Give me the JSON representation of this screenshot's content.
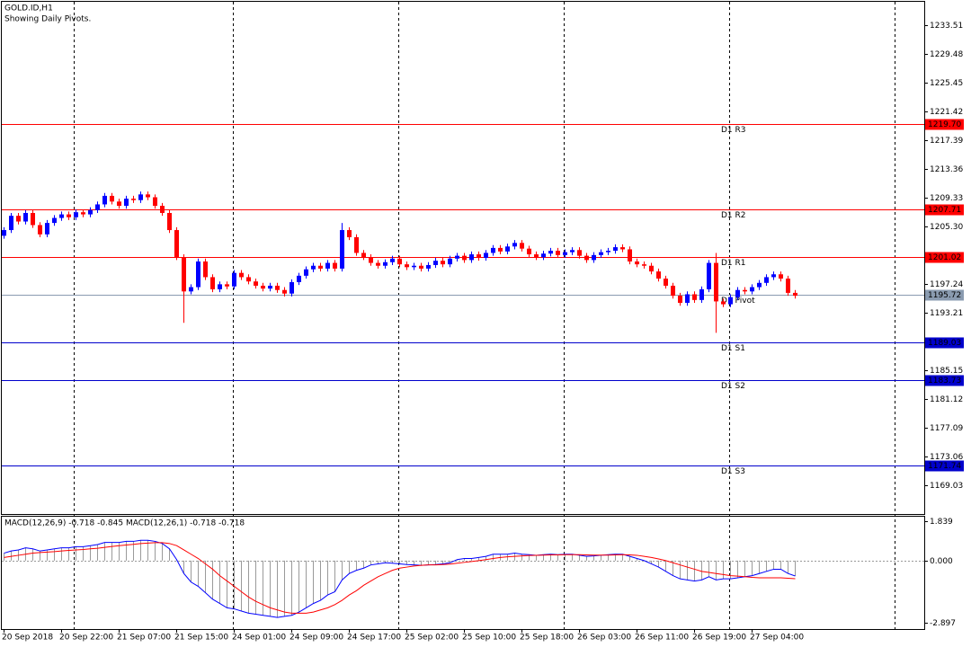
{
  "chart_data": [
    {
      "type": "candlestick",
      "title": "GOLD.ID,H1",
      "subtitle": "Showing Daily Pivots.",
      "categories": [
        "20 Sep 2018",
        null,
        null,
        null,
        null,
        null,
        null,
        null,
        "20 Sep 22:00",
        null,
        null,
        null,
        null,
        null,
        null,
        null,
        "21 Sep 07:00",
        null,
        null,
        null,
        null,
        null,
        null,
        null,
        "21 Sep 15:00",
        null,
        null,
        null,
        null,
        null,
        null,
        null,
        "24 Sep 01:00",
        null,
        null,
        null,
        null,
        null,
        null,
        null,
        "24 Sep 09:00",
        null,
        null,
        null,
        null,
        null,
        null,
        null,
        "24 Sep 17:00",
        null,
        null,
        null,
        null,
        null,
        null,
        null,
        "25 Sep 02:00",
        null,
        null,
        null,
        null,
        null,
        null,
        null,
        "25 Sep 10:00",
        null,
        null,
        null,
        null,
        null,
        null,
        null,
        "25 Sep 18:00",
        null,
        null,
        null,
        null,
        null,
        null,
        null,
        "26 Sep 03:00",
        null,
        null,
        null,
        null,
        null,
        null,
        null,
        "26 Sep 11:00",
        null,
        null,
        null,
        null,
        null,
        null,
        null,
        "26 Sep 19:00",
        null,
        null,
        null,
        null,
        null,
        null,
        null,
        "27 Sep 04:00",
        null,
        null,
        null,
        null,
        null,
        null
      ],
      "open": [
        1204.0,
        1204.8,
        1206.8,
        1206.0,
        1207.2,
        1205.5,
        1204.2,
        1205.8,
        1206.5,
        1207.0,
        1206.6,
        1207.3,
        1207.0,
        1207.6,
        1208.4,
        1209.6,
        1208.8,
        1208.2,
        1209.2,
        1209.0,
        1209.8,
        1209.4,
        1208.2,
        1207.2,
        1204.8,
        1201.0,
        1196.2,
        1196.8,
        1200.4,
        1198.2,
        1196.5,
        1197.2,
        1196.9,
        1198.8,
        1198.2,
        1197.6,
        1197.0,
        1196.6,
        1197.0,
        1196.4,
        1195.9,
        1197.5,
        1198.4,
        1199.3,
        1199.8,
        1199.4,
        1200.2,
        1199.4,
        1204.8,
        1203.8,
        1201.6,
        1201.0,
        1200.2,
        1199.8,
        1200.3,
        1200.8,
        1200.0,
        1199.6,
        1199.8,
        1199.4,
        1199.9,
        1200.5,
        1200.0,
        1200.8,
        1201.2,
        1200.6,
        1201.4,
        1200.9,
        1201.6,
        1202.3,
        1201.8,
        1202.5,
        1203.0,
        1202.2,
        1201.4,
        1201.0,
        1201.5,
        1201.9,
        1201.3,
        1201.7,
        1202.0,
        1201.2,
        1200.6,
        1201.3,
        1201.7,
        1201.9,
        1202.4,
        1202.1,
        1200.4,
        1200.0,
        1199.8,
        1199.0,
        1198.0,
        1197.0,
        1195.6,
        1194.6,
        1195.8,
        1195.0,
        1196.5,
        1200.2,
        1194.8,
        1194.4,
        1195.4,
        1196.4,
        1196.2,
        1196.8,
        1197.4,
        1198.2,
        1198.6,
        1198.0,
        1196.0
      ],
      "high": [
        1205.2,
        1207.2,
        1207.2,
        1207.6,
        1207.6,
        1205.9,
        1206.2,
        1206.9,
        1207.4,
        1207.4,
        1207.7,
        1207.7,
        1208.0,
        1208.8,
        1210.0,
        1210.0,
        1209.2,
        1209.6,
        1209.6,
        1210.2,
        1210.2,
        1209.8,
        1208.6,
        1207.6,
        1205.2,
        1201.4,
        1197.2,
        1200.8,
        1200.8,
        1198.6,
        1197.6,
        1197.6,
        1199.2,
        1199.2,
        1198.6,
        1198.0,
        1197.4,
        1197.4,
        1197.4,
        1196.8,
        1197.9,
        1198.8,
        1199.7,
        1200.2,
        1200.2,
        1200.6,
        1200.6,
        1205.8,
        1205.2,
        1204.2,
        1202.0,
        1201.4,
        1200.6,
        1200.7,
        1201.2,
        1201.2,
        1200.4,
        1200.2,
        1200.2,
        1200.3,
        1200.9,
        1200.9,
        1201.2,
        1201.6,
        1201.6,
        1201.8,
        1201.8,
        1202.0,
        1202.7,
        1202.7,
        1202.9,
        1203.4,
        1203.4,
        1202.6,
        1201.8,
        1201.9,
        1202.3,
        1202.3,
        1202.1,
        1202.4,
        1202.4,
        1201.6,
        1201.7,
        1202.1,
        1202.3,
        1202.8,
        1202.8,
        1202.5,
        1200.8,
        1200.4,
        1200.2,
        1199.4,
        1198.4,
        1197.4,
        1196.0,
        1196.2,
        1196.2,
        1196.9,
        1200.6,
        1201.6,
        1195.2,
        1195.8,
        1196.8,
        1196.8,
        1197.2,
        1197.8,
        1198.6,
        1199.0,
        1199.0,
        1198.4,
        1196.4
      ],
      "low": [
        1203.6,
        1204.4,
        1205.6,
        1205.6,
        1205.1,
        1203.8,
        1203.8,
        1205.4,
        1206.1,
        1206.2,
        1206.2,
        1206.6,
        1206.6,
        1207.2,
        1208.0,
        1208.4,
        1207.8,
        1207.8,
        1208.6,
        1208.6,
        1209.0,
        1207.8,
        1206.8,
        1204.4,
        1200.6,
        1191.8,
        1195.8,
        1196.4,
        1197.8,
        1196.1,
        1196.1,
        1196.5,
        1196.5,
        1197.8,
        1197.2,
        1196.6,
        1196.2,
        1196.2,
        1196.0,
        1195.5,
        1195.5,
        1197.1,
        1198.0,
        1198.9,
        1199.0,
        1199.0,
        1199.0,
        1199.0,
        1203.4,
        1201.2,
        1200.6,
        1199.8,
        1199.4,
        1199.4,
        1199.9,
        1199.6,
        1199.2,
        1199.2,
        1199.0,
        1199.0,
        1199.5,
        1199.6,
        1199.6,
        1200.4,
        1200.2,
        1200.2,
        1200.5,
        1200.5,
        1201.2,
        1201.4,
        1201.4,
        1202.1,
        1201.8,
        1201.0,
        1200.6,
        1200.6,
        1201.1,
        1200.9,
        1200.9,
        1201.3,
        1200.8,
        1200.2,
        1200.2,
        1200.9,
        1201.3,
        1201.5,
        1201.7,
        1200.0,
        1199.6,
        1199.4,
        1198.6,
        1197.6,
        1196.6,
        1195.2,
        1194.2,
        1194.2,
        1194.6,
        1194.6,
        1196.1,
        1190.4,
        1194.0,
        1194.0,
        1195.0,
        1195.8,
        1195.8,
        1196.4,
        1197.0,
        1197.8,
        1197.6,
        1195.6,
        1195.2
      ],
      "close": [
        1204.8,
        1206.8,
        1206.0,
        1207.2,
        1205.5,
        1204.2,
        1205.8,
        1206.5,
        1207.0,
        1206.6,
        1207.3,
        1207.0,
        1207.6,
        1208.4,
        1209.6,
        1208.8,
        1208.2,
        1209.2,
        1209.0,
        1209.8,
        1209.4,
        1208.2,
        1207.2,
        1204.8,
        1201.0,
        1196.2,
        1196.8,
        1200.4,
        1198.2,
        1196.5,
        1197.2,
        1196.9,
        1198.8,
        1198.2,
        1197.6,
        1197.0,
        1196.6,
        1197.0,
        1196.4,
        1195.9,
        1197.5,
        1198.4,
        1199.3,
        1199.8,
        1199.4,
        1200.2,
        1199.4,
        1204.8,
        1203.8,
        1201.6,
        1201.0,
        1200.2,
        1199.8,
        1200.3,
        1200.8,
        1200.0,
        1199.6,
        1199.8,
        1199.4,
        1199.9,
        1200.5,
        1200.0,
        1200.8,
        1201.2,
        1200.6,
        1201.4,
        1200.9,
        1201.6,
        1202.3,
        1201.8,
        1202.5,
        1203.0,
        1202.2,
        1201.4,
        1201.0,
        1201.5,
        1201.9,
        1201.3,
        1201.7,
        1202.0,
        1201.2,
        1200.6,
        1201.3,
        1201.7,
        1201.9,
        1202.4,
        1202.1,
        1200.4,
        1200.0,
        1199.8,
        1199.0,
        1198.0,
        1197.0,
        1195.6,
        1194.6,
        1195.8,
        1195.0,
        1196.5,
        1200.2,
        1194.8,
        1194.4,
        1195.4,
        1196.4,
        1196.2,
        1196.8,
        1197.4,
        1198.2,
        1198.6,
        1198.0,
        1196.0,
        1195.6
      ],
      "up_color": "#0000ff",
      "down_color": "#ff0000",
      "ylim": [
        1165.0,
        1236.8
      ],
      "yticks": [
        1233.51,
        1229.48,
        1225.45,
        1221.42,
        1217.39,
        1213.36,
        1209.33,
        {
          "value": 1205.3,
          "label": "1205.30"
        },
        1197.24,
        1193.21,
        1185.15,
        1181.12,
        1177.09,
        1173.06,
        1169.03
      ],
      "levels": [
        {
          "name": "D1 R3",
          "value": 1219.7,
          "label": "1219.70",
          "color": "#ff0000"
        },
        {
          "name": "D1 R2",
          "value": 1207.71,
          "label": "1207.71",
          "color": "#ff0000"
        },
        {
          "name": "D1 R1",
          "value": 1201.02,
          "label": "1201.02",
          "color": "#ff0000"
        },
        {
          "name": "D1 Pivot",
          "value": 1195.72,
          "label": "1195.72",
          "color": "#8a9bb0"
        },
        {
          "name": "D1 S1",
          "value": 1189.03,
          "label": "1189.03",
          "color": "#0000cc"
        },
        {
          "name": "D1 S2",
          "value": 1183.73,
          "label": "1183.73",
          "color": "#0000cc"
        },
        {
          "name": "D1 S3",
          "value": 1171.74,
          "label": "1171.74",
          "color": "#0000cc"
        }
      ]
    },
    {
      "type": "macd",
      "title": "MACD(12,26,9) -0.718 -0.845 MACD(12,26,1) -0.718 -0.718",
      "ylim": [
        -3.19,
        2.05
      ],
      "yticks": [
        1.839,
        {
          "value": 0,
          "label": "0.000"
        },
        -2.897
      ],
      "main": {
        "color": "#0000ff",
        "bar_color": "#9a9a9a",
        "values": [
          0.35,
          0.45,
          0.5,
          0.6,
          0.55,
          0.45,
          0.5,
          0.55,
          0.6,
          0.6,
          0.65,
          0.65,
          0.7,
          0.75,
          0.85,
          0.85,
          0.85,
          0.9,
          0.9,
          0.95,
          0.95,
          0.9,
          0.8,
          0.55,
          0.05,
          -0.6,
          -1.0,
          -1.2,
          -1.5,
          -1.8,
          -2.0,
          -2.2,
          -2.25,
          -2.35,
          -2.45,
          -2.5,
          -2.55,
          -2.6,
          -2.65,
          -2.6,
          -2.55,
          -2.4,
          -2.2,
          -2.0,
          -1.85,
          -1.6,
          -1.45,
          -0.9,
          -0.6,
          -0.45,
          -0.35,
          -0.2,
          -0.15,
          -0.1,
          -0.12,
          -0.15,
          -0.18,
          -0.2,
          -0.22,
          -0.2,
          -0.18,
          -0.15,
          -0.1,
          0.05,
          0.1,
          0.1,
          0.15,
          0.2,
          0.3,
          0.3,
          0.3,
          0.35,
          0.3,
          0.28,
          0.25,
          0.28,
          0.3,
          0.28,
          0.3,
          0.3,
          0.25,
          0.2,
          0.22,
          0.25,
          0.28,
          0.3,
          0.3,
          0.2,
          0.1,
          0.0,
          -0.15,
          -0.3,
          -0.5,
          -0.7,
          -0.85,
          -0.9,
          -0.95,
          -0.9,
          -0.75,
          -0.9,
          -0.85,
          -0.85,
          -0.8,
          -0.75,
          -0.7,
          -0.6,
          -0.5,
          -0.4,
          -0.4,
          -0.6,
          -0.718
        ]
      },
      "signal": {
        "color": "#ff0000",
        "values": [
          0.15,
          0.2,
          0.25,
          0.3,
          0.35,
          0.38,
          0.4,
          0.42,
          0.45,
          0.48,
          0.5,
          0.52,
          0.55,
          0.58,
          0.62,
          0.66,
          0.7,
          0.73,
          0.76,
          0.8,
          0.82,
          0.84,
          0.84,
          0.8,
          0.7,
          0.5,
          0.3,
          0.1,
          -0.15,
          -0.4,
          -0.7,
          -0.95,
          -1.2,
          -1.45,
          -1.7,
          -1.9,
          -2.05,
          -2.2,
          -2.3,
          -2.4,
          -2.45,
          -2.45,
          -2.45,
          -2.4,
          -2.3,
          -2.2,
          -2.05,
          -1.85,
          -1.6,
          -1.4,
          -1.15,
          -0.95,
          -0.75,
          -0.6,
          -0.45,
          -0.35,
          -0.3,
          -0.25,
          -0.22,
          -0.2,
          -0.2,
          -0.18,
          -0.16,
          -0.12,
          -0.08,
          -0.04,
          0.0,
          0.05,
          0.1,
          0.15,
          0.18,
          0.2,
          0.22,
          0.24,
          0.25,
          0.26,
          0.27,
          0.27,
          0.28,
          0.28,
          0.28,
          0.27,
          0.26,
          0.26,
          0.26,
          0.27,
          0.28,
          0.27,
          0.25,
          0.2,
          0.15,
          0.08,
          0.0,
          -0.1,
          -0.2,
          -0.3,
          -0.4,
          -0.5,
          -0.55,
          -0.6,
          -0.65,
          -0.7,
          -0.72,
          -0.75,
          -0.78,
          -0.8,
          -0.8,
          -0.8,
          -0.8,
          -0.82,
          -0.845
        ]
      }
    }
  ]
}
